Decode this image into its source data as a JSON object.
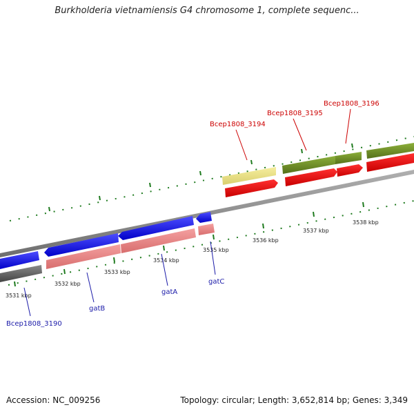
{
  "header": {
    "title": "Burkholderia vietnamiensis G4 chromosome 1, complete sequenc..."
  },
  "footer": {
    "accession": "Accession: NC_009256",
    "summary": "Topology: circular; Length: 3,652,814 bp; Genes: 3,349"
  },
  "scale": {
    "ticks": [
      {
        "label": "3531 kbp",
        "value": 3531
      },
      {
        "label": "3532 kbp",
        "value": 3532
      },
      {
        "label": "3533 kbp",
        "value": 3533
      },
      {
        "label": "3534 kbp",
        "value": 3534
      },
      {
        "label": "3535 kbp",
        "value": 3535
      },
      {
        "label": "3536 kbp",
        "value": 3536
      },
      {
        "label": "3537 kbp",
        "value": 3537
      },
      {
        "label": "3538 kbp",
        "value": 3538
      }
    ]
  },
  "genes": [
    {
      "label": "Bcep1808_3190",
      "strand": "reverse",
      "color": "#1a1ae6",
      "label_color": "#1a1aa8"
    },
    {
      "label": "gatB",
      "strand": "reverse",
      "color": "#1a1ae6",
      "label_color": "#1a1aa8"
    },
    {
      "label": "gatA",
      "strand": "reverse",
      "color": "#1a1ae6",
      "label_color": "#1a1aa8"
    },
    {
      "label": "gatC",
      "strand": "reverse",
      "color": "#1a1ae6",
      "label_color": "#1a1aa8"
    },
    {
      "label": "Bcep1808_3194",
      "strand": "forward",
      "color": "#f0e68c",
      "label_color": "#cc0000"
    },
    {
      "label": "Bcep1808_3195",
      "strand": "forward",
      "color": "#6b8e23",
      "label_color": "#cc0000"
    },
    {
      "label": "Bcep1808_3196",
      "strand": "forward",
      "color": "#6b8e23",
      "label_color": "#cc0000"
    }
  ],
  "colors": {
    "backbone": "#8c8c8c",
    "forward_cds": "#ee0000",
    "reverse_cds": "#ee8888",
    "tick": "#1e7a1e",
    "gray_feature": "#666666"
  }
}
